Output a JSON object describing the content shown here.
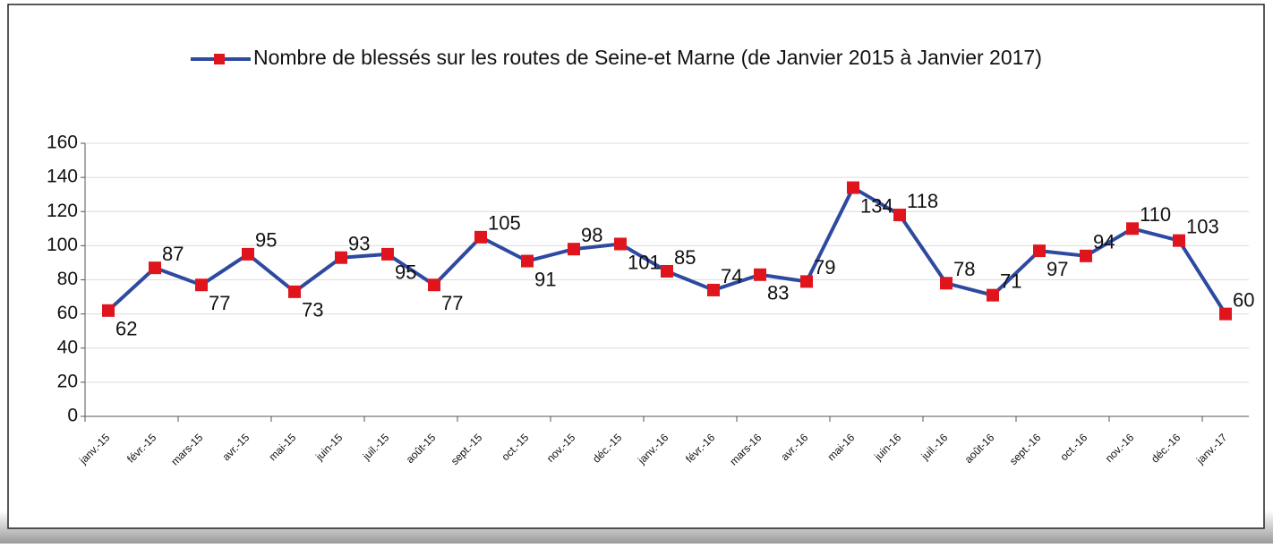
{
  "chart_data": {
    "type": "line",
    "categories": [
      "janv.-15",
      "févr.-15",
      "mars-15",
      "avr.-15",
      "mai-15",
      "juin-15",
      "juil.-15",
      "août-15",
      "sept.-15",
      "oct.-15",
      "nov.-15",
      "déc.-15",
      "janv.-16",
      "févr.-16",
      "mars-16",
      "avr.-16",
      "mai-16",
      "juin-16",
      "juil.-16",
      "août-16",
      "sept.-16",
      "oct.-16",
      "nov.-16",
      "déc.-16",
      "janv.-17"
    ],
    "series": [
      {
        "name": "Nombre de blessés sur les routes de Seine-et Marne  (de Janvier 2015 à Janvier 2017)",
        "color": "#2e4aa0",
        "marker_color": "#e0141c",
        "values": [
          62,
          87,
          77,
          95,
          73,
          93,
          95,
          77,
          105,
          91,
          98,
          101,
          85,
          74,
          83,
          79,
          134,
          118,
          78,
          71,
          97,
          94,
          110,
          103,
          60
        ]
      }
    ],
    "ylim": [
      0,
      160
    ],
    "yticks": [
      0,
      20,
      40,
      60,
      80,
      100,
      120,
      140,
      160
    ],
    "grid": true,
    "legend": "top"
  }
}
